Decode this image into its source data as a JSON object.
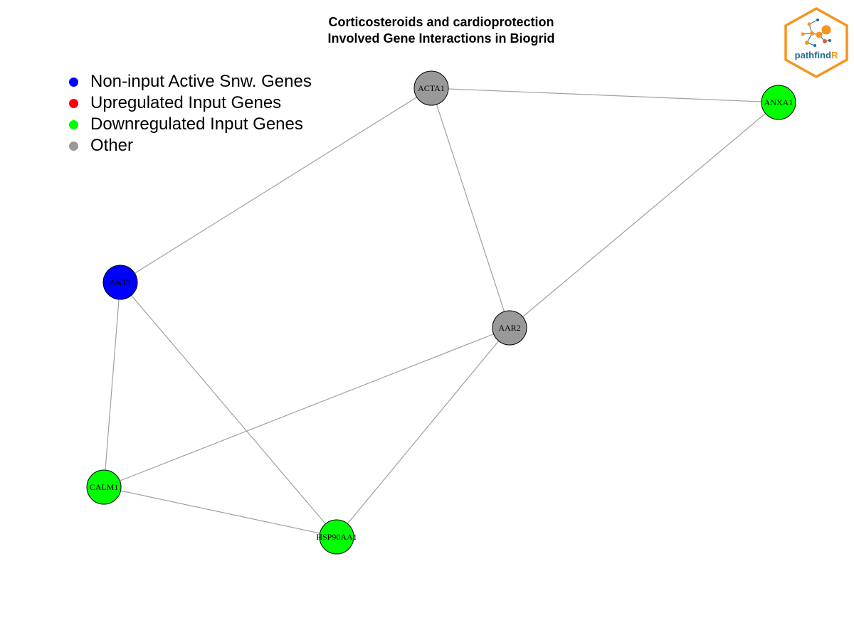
{
  "title": {
    "line1": "Corticosteroids and cardioprotection",
    "line2": "Involved Gene Interactions in Biogrid"
  },
  "legend": [
    {
      "label": "Non-input Active Snw. Genes",
      "color": "#0000ff"
    },
    {
      "label": "Upregulated Input Genes",
      "color": "#ff0000"
    },
    {
      "label": "Downregulated Input Genes",
      "color": "#00ff00"
    },
    {
      "label": "Other",
      "color": "#999999"
    }
  ],
  "colors": {
    "edge": "#a0a0a0",
    "node_border": "#000000",
    "logo_orange": "#f7941d",
    "logo_blue": "#1f6e8c"
  },
  "logo": {
    "text_main": "pathfind",
    "text_accent": "R"
  },
  "nodes": [
    {
      "id": "ACTA1",
      "label": "ACTA1",
      "group": "Other"
    },
    {
      "id": "ANXA1",
      "label": "ANXA1",
      "group": "Downregulated Input Genes"
    },
    {
      "id": "AKT1",
      "label": "AKT1",
      "group": "Non-input Active Snw. Genes"
    },
    {
      "id": "AAR2",
      "label": "AAR2",
      "group": "Other"
    },
    {
      "id": "CALM1",
      "label": "CALM1",
      "group": "Downregulated Input Genes"
    },
    {
      "id": "HSP90AA1",
      "label": "HSP90AA1",
      "group": "Downregulated Input Genes"
    }
  ],
  "edges": [
    [
      "ACTA1",
      "ANXA1"
    ],
    [
      "ACTA1",
      "AKT1"
    ],
    [
      "ACTA1",
      "AAR2"
    ],
    [
      "ANXA1",
      "AAR2"
    ],
    [
      "AKT1",
      "CALM1"
    ],
    [
      "AKT1",
      "HSP90AA1"
    ],
    [
      "AAR2",
      "CALM1"
    ],
    [
      "AAR2",
      "HSP90AA1"
    ],
    [
      "CALM1",
      "HSP90AA1"
    ]
  ]
}
